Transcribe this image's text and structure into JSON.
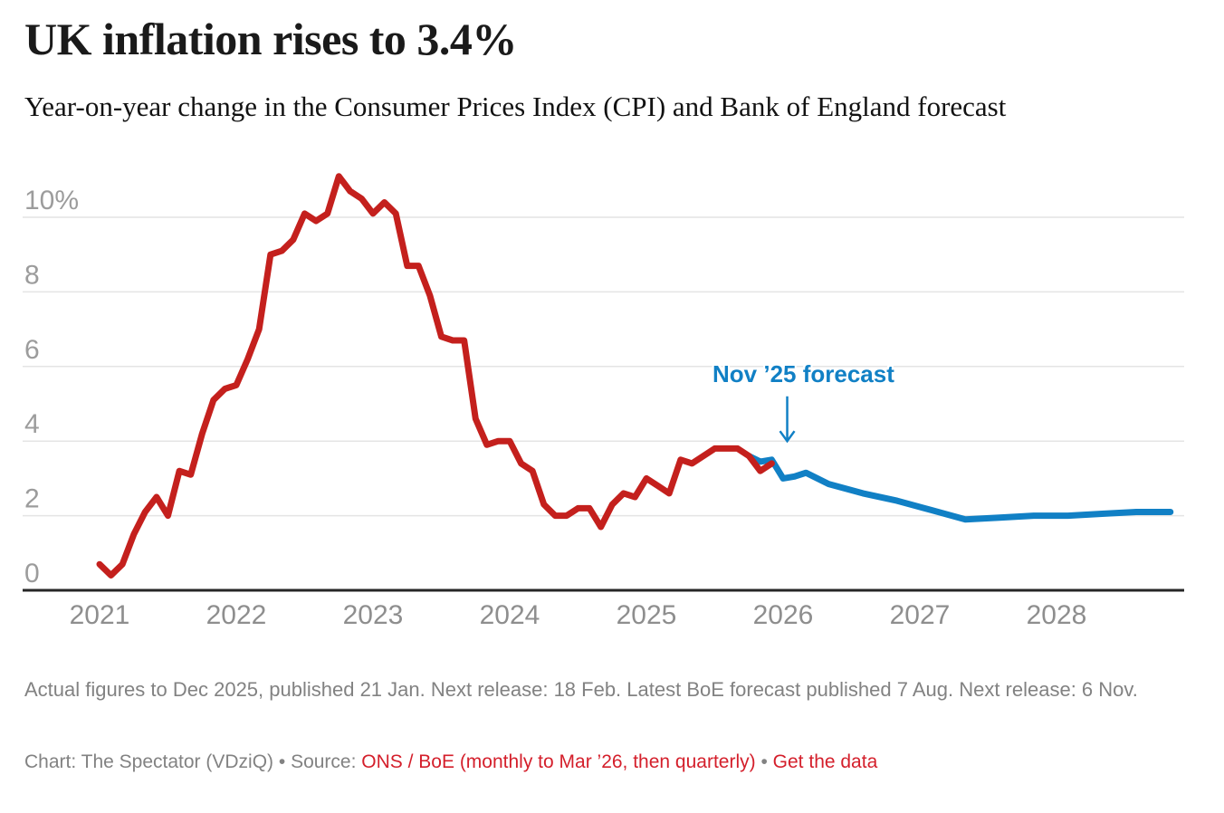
{
  "header": {
    "title": "UK inflation rises to 3.4%",
    "subtitle": "Year-on-year change in the Consumer Prices Index (CPI) and Bank of England forecast"
  },
  "chart_data": {
    "type": "line",
    "title": "UK inflation rises to 3.4%",
    "subtitle": "Year-on-year change in the Consumer Prices Index (CPI) and Bank of England forecast",
    "xlabel": "",
    "ylabel": "",
    "y_unit": "%",
    "ylim": [
      0,
      11.2
    ],
    "xlim": [
      2020.85,
      2029.0
    ],
    "grid": "horizontal",
    "legend": "none",
    "yticks": [
      {
        "value": 0,
        "label": "0"
      },
      {
        "value": 2,
        "label": "2"
      },
      {
        "value": 4,
        "label": "4"
      },
      {
        "value": 6,
        "label": "6"
      },
      {
        "value": 8,
        "label": "8"
      },
      {
        "value": 10,
        "label": "10%"
      }
    ],
    "xticks": [
      {
        "value": 2021,
        "label": "2021"
      },
      {
        "value": 2022,
        "label": "2022"
      },
      {
        "value": 2023,
        "label": "2023"
      },
      {
        "value": 2024,
        "label": "2024"
      },
      {
        "value": 2025,
        "label": "2025"
      },
      {
        "value": 2026,
        "label": "2026"
      },
      {
        "value": 2027,
        "label": "2027"
      },
      {
        "value": 2028,
        "label": "2028"
      }
    ],
    "series": [
      {
        "name": "Bank of England forecast",
        "color": "#1180c5",
        "points": [
          [
            2025.75,
            3.6
          ],
          [
            2025.8333,
            3.45
          ],
          [
            2025.9167,
            3.5
          ],
          [
            2026.0,
            3.0
          ],
          [
            2026.0833,
            3.05
          ],
          [
            2026.1667,
            3.15
          ],
          [
            2026.3333,
            2.85
          ],
          [
            2026.5833,
            2.6
          ],
          [
            2026.8333,
            2.4
          ],
          [
            2027.0833,
            2.15
          ],
          [
            2027.3333,
            1.9
          ],
          [
            2027.5833,
            1.95
          ],
          [
            2027.8333,
            2.0
          ],
          [
            2028.0833,
            2.0
          ],
          [
            2028.3333,
            2.05
          ],
          [
            2028.5833,
            2.1
          ],
          [
            2028.8333,
            2.1
          ]
        ]
      },
      {
        "name": "CPI actual",
        "color": "#c4201d",
        "points": [
          [
            2021.0,
            0.7
          ],
          [
            2021.0833,
            0.4
          ],
          [
            2021.1667,
            0.7
          ],
          [
            2021.25,
            1.5
          ],
          [
            2021.3333,
            2.1
          ],
          [
            2021.4167,
            2.5
          ],
          [
            2021.5,
            2.0
          ],
          [
            2021.5833,
            3.2
          ],
          [
            2021.6667,
            3.1
          ],
          [
            2021.75,
            4.2
          ],
          [
            2021.8333,
            5.1
          ],
          [
            2021.9167,
            5.4
          ],
          [
            2022.0,
            5.5
          ],
          [
            2022.0833,
            6.2
          ],
          [
            2022.1667,
            7.0
          ],
          [
            2022.25,
            9.0
          ],
          [
            2022.3333,
            9.1
          ],
          [
            2022.4167,
            9.4
          ],
          [
            2022.5,
            10.1
          ],
          [
            2022.5833,
            9.9
          ],
          [
            2022.6667,
            10.1
          ],
          [
            2022.75,
            11.1
          ],
          [
            2022.8333,
            10.7
          ],
          [
            2022.9167,
            10.5
          ],
          [
            2023.0,
            10.1
          ],
          [
            2023.0833,
            10.4
          ],
          [
            2023.1667,
            10.1
          ],
          [
            2023.25,
            8.7
          ],
          [
            2023.3333,
            8.7
          ],
          [
            2023.4167,
            7.9
          ],
          [
            2023.5,
            6.8
          ],
          [
            2023.5833,
            6.7
          ],
          [
            2023.6667,
            6.7
          ],
          [
            2023.75,
            4.6
          ],
          [
            2023.8333,
            3.9
          ],
          [
            2023.9167,
            4.0
          ],
          [
            2024.0,
            4.0
          ],
          [
            2024.0833,
            3.4
          ],
          [
            2024.1667,
            3.2
          ],
          [
            2024.25,
            2.3
          ],
          [
            2024.3333,
            2.0
          ],
          [
            2024.4167,
            2.0
          ],
          [
            2024.5,
            2.2
          ],
          [
            2024.5833,
            2.2
          ],
          [
            2024.6667,
            1.7
          ],
          [
            2024.75,
            2.3
          ],
          [
            2024.8333,
            2.6
          ],
          [
            2024.9167,
            2.5
          ],
          [
            2025.0,
            3.0
          ],
          [
            2025.0833,
            2.8
          ],
          [
            2025.1667,
            2.6
          ],
          [
            2025.25,
            3.5
          ],
          [
            2025.3333,
            3.4
          ],
          [
            2025.4167,
            3.6
          ],
          [
            2025.5,
            3.8
          ],
          [
            2025.5833,
            3.8
          ],
          [
            2025.6667,
            3.8
          ],
          [
            2025.75,
            3.6
          ],
          [
            2025.8333,
            3.2
          ],
          [
            2025.9167,
            3.4
          ]
        ]
      }
    ],
    "annotation": {
      "text": "Nov ’25 forecast",
      "color": "#1180c5",
      "arrow_x": 2026.03,
      "arrow_from_value": 5.2,
      "arrow_to_value": 4.0
    }
  },
  "footer": {
    "notes": "Actual figures to Dec 2025, published 21 Jan. Next release: 18 Feb. Latest BoE forecast published 7 Aug. Next release: 6 Nov.",
    "credit_prefix": "Chart: The Spectator (VDziQ) ",
    "separator": "•",
    "source_label": " Source: ",
    "source_link": "ONS / BoE (monthly to Mar ’26, then quarterly)",
    "get_data_label": "Get the data"
  },
  "colors": {
    "actual_line": "#c4201d",
    "forecast_line": "#1180c5",
    "link_red": "#d41f2b",
    "gridline": "#e4e4e4",
    "axis_line": "#262626"
  }
}
